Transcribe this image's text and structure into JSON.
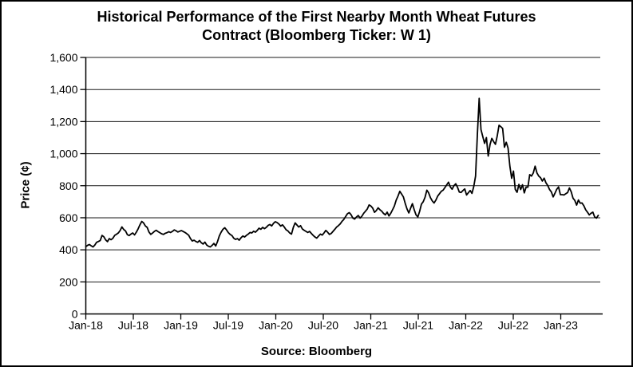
{
  "chart_data": {
    "type": "line",
    "title": "Historical Performance of the First Nearby Month Wheat Futures Contract (Bloomberg Ticker: W 1)",
    "ylabel": "Price (¢)",
    "source_note": "Source: Bloomberg",
    "ylim": [
      0,
      1600
    ],
    "ytick_step": 200,
    "ytick_values": [
      0,
      200,
      400,
      600,
      800,
      1000,
      1200,
      1400,
      1600
    ],
    "ytick_labels": [
      "0",
      "200",
      "400",
      "600",
      "800",
      "1,000",
      "1,200",
      "1,400",
      "1,600"
    ],
    "xtick_labels": [
      "Jan-18",
      "Jul-18",
      "Jan-19",
      "Jul-19",
      "Jan-20",
      "Jul-20",
      "Jan-21",
      "Jul-21",
      "Jan-22",
      "Jul-22",
      "Jan-23"
    ],
    "x_frequency": "weekly",
    "x_range": "Jan-2018 to Jun-2023",
    "grid": true,
    "legend_position": "none",
    "line_color": "#000000",
    "background_color": "#ffffff",
    "border_color": "#000000",
    "series": [
      {
        "name": "First nearby month wheat futures price (W 1)",
        "values": [
          420,
          428,
          433,
          425,
          418,
          430,
          447,
          452,
          458,
          490,
          481,
          462,
          451,
          470,
          463,
          472,
          490,
          497,
          505,
          520,
          543,
          527,
          518,
          495,
          489,
          498,
          505,
          493,
          510,
          531,
          556,
          577,
          568,
          549,
          540,
          511,
          496,
          505,
          515,
          522,
          514,
          507,
          500,
          496,
          503,
          507,
          513,
          508,
          515,
          524,
          519,
          511,
          516,
          520,
          514,
          508,
          500,
          491,
          470,
          455,
          460,
          452,
          447,
          458,
          444,
          436,
          448,
          430,
          422,
          418,
          428,
          440,
          424,
          452,
          487,
          510,
          528,
          538,
          524,
          507,
          496,
          489,
          472,
          465,
          470,
          460,
          475,
          486,
          480,
          490,
          498,
          508,
          505,
          516,
          510,
          521,
          535,
          528,
          540,
          532,
          540,
          552,
          558,
          549,
          565,
          575,
          570,
          561,
          548,
          556,
          542,
          525,
          518,
          505,
          498,
          540,
          568,
          555,
          542,
          551,
          530,
          522,
          515,
          508,
          515,
          502,
          490,
          480,
          473,
          486,
          498,
          492,
          505,
          521,
          510,
          496,
          502,
          515,
          528,
          542,
          551,
          562,
          578,
          590,
          608,
          625,
          632,
          619,
          598,
          592,
          605,
          614,
          598,
          610,
          628,
          641,
          655,
          680,
          673,
          660,
          634,
          645,
          662,
          650,
          641,
          627,
          618,
          635,
          611,
          628,
          650,
          673,
          710,
          735,
          765,
          748,
          730,
          690,
          655,
          630,
          660,
          688,
          650,
          618,
          605,
          640,
          685,
          700,
          728,
          772,
          755,
          725,
          705,
          692,
          710,
          735,
          750,
          765,
          772,
          788,
          805,
          822,
          792,
          778,
          800,
          812,
          790,
          760,
          758,
          770,
          780,
          742,
          756,
          770,
          752,
          795,
          860,
          1120,
          1345,
          1150,
          1106,
          1064,
          1100,
          985,
          1056,
          1095,
          1075,
          1058,
          1110,
          1177,
          1168,
          1157,
          1040,
          1071,
          1035,
          923,
          846,
          891,
          777,
          759,
          808,
          776,
          806,
          755,
          791,
          791,
          869,
          860,
          880,
          922,
          880,
          860,
          850,
          829,
          847,
          818,
          801,
          776,
          761,
          730,
          753,
          778,
          792,
          744,
          744,
          742,
          750,
          757,
          786,
          762,
          722,
          708,
          679,
          711,
          691,
          692,
          675,
          650,
          635,
          618,
          628,
          635,
          605,
          598,
          615
        ]
      }
    ]
  }
}
